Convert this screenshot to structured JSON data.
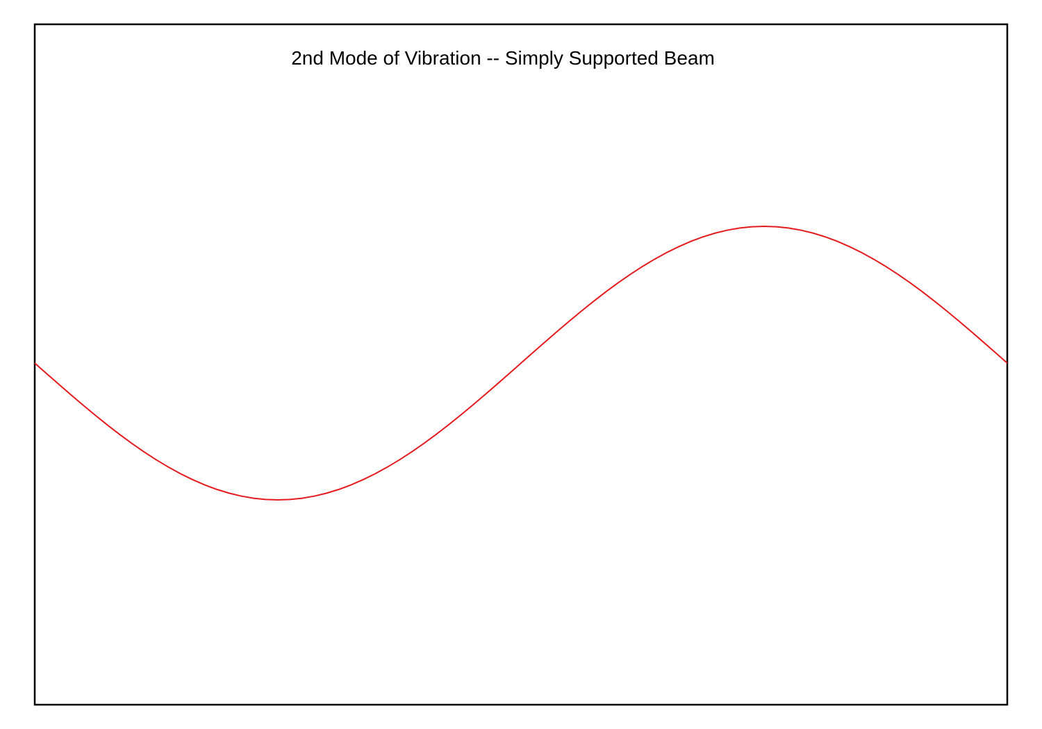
{
  "chart_data": {
    "type": "line",
    "title": "2nd Mode of Vibration -- Simply Supported Beam",
    "xlabel": "",
    "ylabel": "",
    "xlim": [
      0,
      1
    ],
    "ylim": [
      -2,
      2
    ],
    "grid": false,
    "legend": "none",
    "series": [
      {
        "color": "#e41a1c",
        "x": [
          0,
          0.0125,
          0.025,
          0.0375,
          0.05,
          0.0625,
          0.075,
          0.0875,
          0.1,
          0.1125,
          0.125,
          0.1375,
          0.15,
          0.1625,
          0.175,
          0.1875,
          0.2,
          0.2125,
          0.225,
          0.2375,
          0.25,
          0.2625,
          0.275,
          0.2875,
          0.3,
          0.3125,
          0.325,
          0.3375,
          0.35,
          0.3625,
          0.375,
          0.3875,
          0.4,
          0.4125,
          0.425,
          0.4375,
          0.45,
          0.4625,
          0.475,
          0.4875,
          0.5,
          0.5125,
          0.525,
          0.5375,
          0.55,
          0.5625,
          0.575,
          0.5875,
          0.6,
          0.6125,
          0.625,
          0.6375,
          0.65,
          0.6625,
          0.675,
          0.6875,
          0.7,
          0.7125,
          0.725,
          0.7375,
          0.75,
          0.7625,
          0.775,
          0.7875,
          0.8,
          0.8125,
          0.825,
          0.8375,
          0.85,
          0.8625,
          0.875,
          0.8875,
          0.9,
          0.9125,
          0.925,
          0.9375,
          0.95,
          0.9625,
          0.975,
          0.9875,
          1
        ],
        "values": [
          0,
          -0.0785,
          -0.1564,
          -0.2334,
          -0.309,
          -0.3827,
          -0.454,
          -0.5225,
          -0.5878,
          -0.6494,
          -0.7071,
          -0.7604,
          -0.809,
          -0.8526,
          -0.891,
          -0.9239,
          -0.9511,
          -0.9724,
          -0.9877,
          -0.9969,
          -1,
          -0.9969,
          -0.9877,
          -0.9724,
          -0.9511,
          -0.9239,
          -0.891,
          -0.8526,
          -0.809,
          -0.7604,
          -0.7071,
          -0.6494,
          -0.5878,
          -0.5225,
          -0.454,
          -0.3827,
          -0.309,
          -0.2334,
          -0.1564,
          -0.0785,
          0,
          0.0785,
          0.1564,
          0.2334,
          0.309,
          0.3827,
          0.454,
          0.5225,
          0.5878,
          0.6494,
          0.7071,
          0.7604,
          0.809,
          0.8526,
          0.891,
          0.9239,
          0.9511,
          0.9724,
          0.9877,
          0.9969,
          1,
          0.9969,
          0.9877,
          0.9724,
          0.9511,
          0.9239,
          0.891,
          0.8526,
          0.809,
          0.7604,
          0.7071,
          0.6494,
          0.5878,
          0.5225,
          0.454,
          0.3827,
          0.309,
          0.2334,
          0.1564,
          0.0785,
          0
        ]
      }
    ]
  }
}
